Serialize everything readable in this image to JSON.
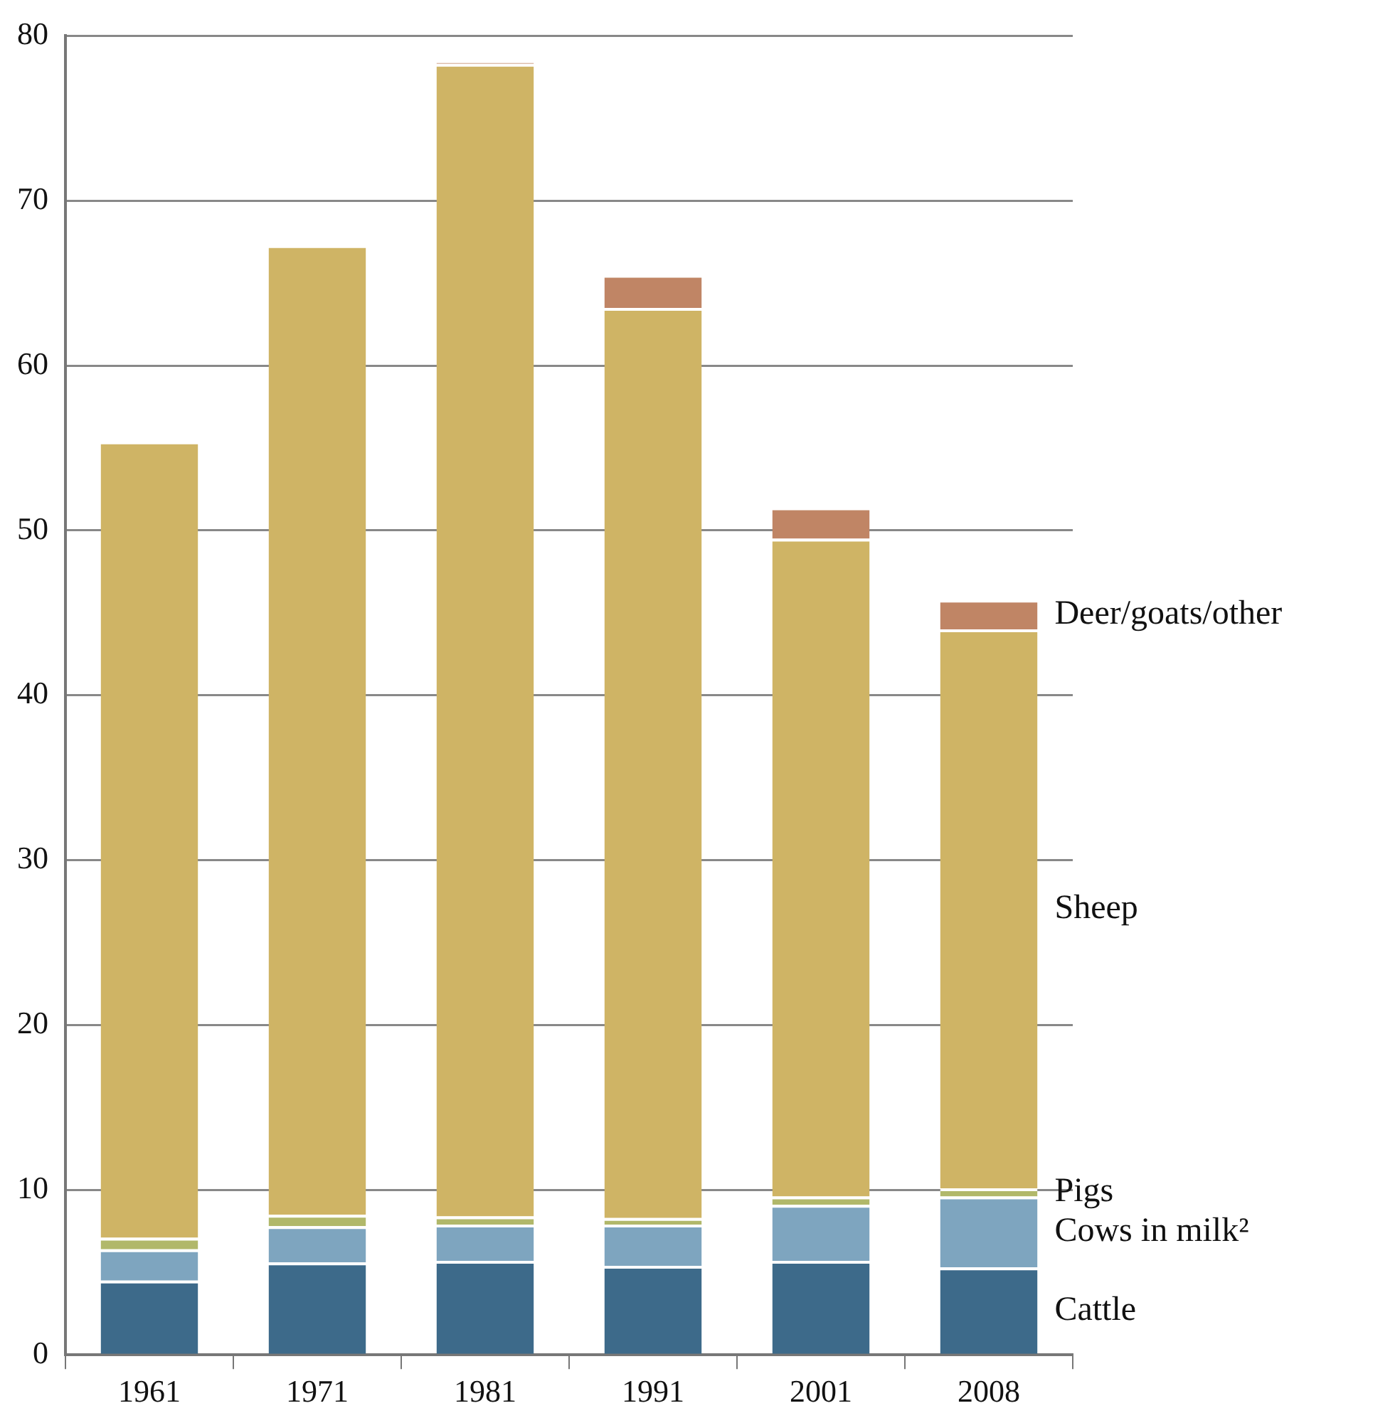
{
  "chart_data": {
    "type": "bar",
    "stacked": true,
    "grid": "y",
    "categories": [
      "1961",
      "1971",
      "1981",
      "1991",
      "2001",
      "2008"
    ],
    "series": [
      {
        "name": "Cattle",
        "color": "#3d6a8a",
        "values": [
          4.5,
          5.6,
          5.7,
          5.4,
          5.7,
          5.3
        ]
      },
      {
        "name": "Cows in milk²",
        "color": "#7ea5bf",
        "values": [
          1.9,
          2.2,
          2.2,
          2.5,
          3.4,
          4.3
        ]
      },
      {
        "name": "Pigs",
        "color": "#b1b86a",
        "values": [
          0.7,
          0.7,
          0.5,
          0.4,
          0.5,
          0.5
        ]
      },
      {
        "name": "Sheep",
        "color": "#cfb465",
        "values": [
          48.3,
          58.8,
          69.9,
          55.2,
          39.9,
          33.9
        ]
      },
      {
        "name": "Deer/goats/other",
        "color": "#c08565",
        "values": [
          0,
          0,
          0.1,
          2.0,
          1.9,
          1.8
        ]
      }
    ],
    "ylim": [
      0,
      80
    ],
    "yticks": [
      0,
      10,
      20,
      30,
      40,
      50,
      60,
      70,
      80
    ]
  }
}
